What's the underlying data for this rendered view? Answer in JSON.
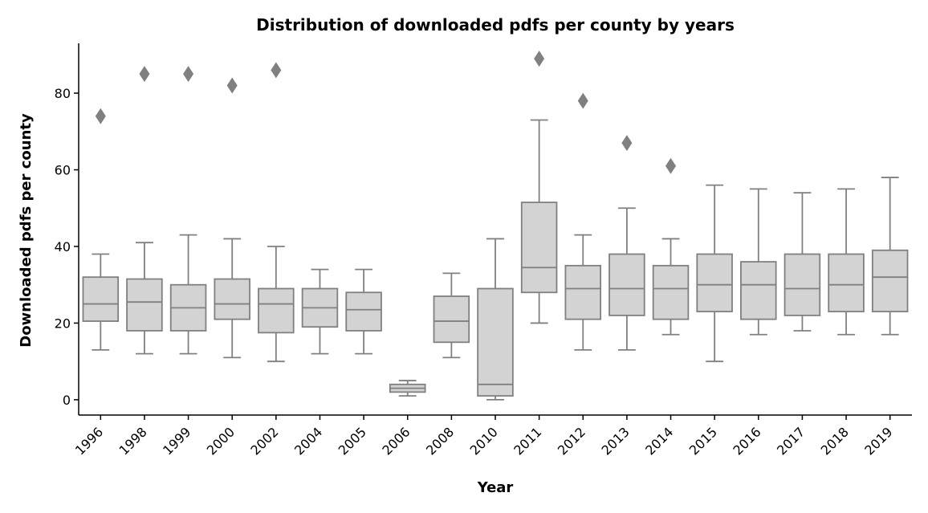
{
  "chart_data": {
    "type": "box",
    "title": "Distribution of downloaded pdfs per county by years",
    "xlabel": "Year",
    "ylabel": "Downloaded pdfs per county",
    "ylim": [
      -4,
      93
    ],
    "yticks": [
      0,
      20,
      40,
      60,
      80
    ],
    "grid": false,
    "colors": {
      "box_fill": "#d3d3d3",
      "line": "#808080"
    },
    "categories": [
      "1996",
      "1998",
      "1999",
      "2000",
      "2002",
      "2004",
      "2005",
      "2006",
      "2008",
      "2010",
      "2011",
      "2012",
      "2013",
      "2014",
      "2015",
      "2016",
      "2017",
      "2018",
      "2019"
    ],
    "boxes": [
      {
        "min": 13,
        "q1": 20.5,
        "median": 25,
        "q3": 32,
        "max": 38,
        "outliers": [
          74
        ]
      },
      {
        "min": 12,
        "q1": 18,
        "median": 25.5,
        "q3": 31.5,
        "max": 41,
        "outliers": [
          85
        ]
      },
      {
        "min": 12,
        "q1": 18,
        "median": 24,
        "q3": 30,
        "max": 43,
        "outliers": [
          85
        ]
      },
      {
        "min": 11,
        "q1": 21,
        "median": 25,
        "q3": 31.5,
        "max": 42,
        "outliers": [
          82
        ]
      },
      {
        "min": 10,
        "q1": 17.5,
        "median": 25,
        "q3": 29,
        "max": 40,
        "outliers": [
          86
        ]
      },
      {
        "min": 12,
        "q1": 19,
        "median": 24,
        "q3": 29,
        "max": 34,
        "outliers": []
      },
      {
        "min": 12,
        "q1": 18,
        "median": 23.5,
        "q3": 28,
        "max": 34,
        "outliers": []
      },
      {
        "min": 1,
        "q1": 2,
        "median": 3,
        "q3": 4,
        "max": 5,
        "outliers": []
      },
      {
        "min": 11,
        "q1": 15,
        "median": 20.5,
        "q3": 27,
        "max": 33,
        "outliers": []
      },
      {
        "min": 0,
        "q1": 1,
        "median": 4,
        "q3": 29,
        "max": 42,
        "outliers": []
      },
      {
        "min": 20,
        "q1": 28,
        "median": 34.5,
        "q3": 51.5,
        "max": 73,
        "outliers": [
          89
        ]
      },
      {
        "min": 13,
        "q1": 21,
        "median": 29,
        "q3": 35,
        "max": 43,
        "outliers": [
          78
        ]
      },
      {
        "min": 13,
        "q1": 22,
        "median": 29,
        "q3": 38,
        "max": 50,
        "outliers": [
          67
        ]
      },
      {
        "min": 17,
        "q1": 21,
        "median": 29,
        "q3": 35,
        "max": 42,
        "outliers": [
          61
        ]
      },
      {
        "min": 10,
        "q1": 23,
        "median": 30,
        "q3": 38,
        "max": 56,
        "outliers": []
      },
      {
        "min": 17,
        "q1": 21,
        "median": 30,
        "q3": 36,
        "max": 55,
        "outliers": []
      },
      {
        "min": 18,
        "q1": 22,
        "median": 29,
        "q3": 38,
        "max": 54,
        "outliers": []
      },
      {
        "min": 17,
        "q1": 23,
        "median": 30,
        "q3": 38,
        "max": 55,
        "outliers": []
      },
      {
        "min": 17,
        "q1": 23,
        "median": 32,
        "q3": 39,
        "max": 58,
        "outliers": []
      }
    ]
  }
}
